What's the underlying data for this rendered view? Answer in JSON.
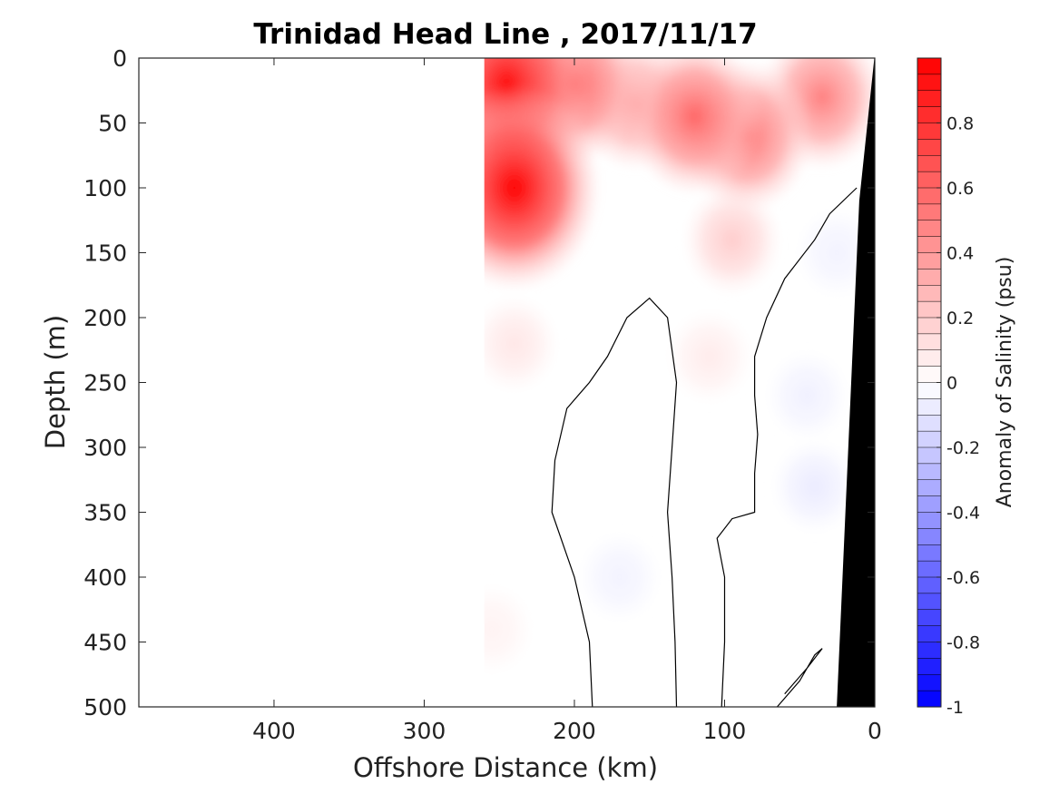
{
  "chart_data": {
    "type": "heatmap",
    "title": "Trinidad Head Line , 2017/11/17",
    "xlabel": "Offshore Distance (km)",
    "ylabel": "Depth (m)",
    "xlim": [
      490,
      0
    ],
    "ylim": [
      0,
      500
    ],
    "x_reversed": true,
    "y_reversed": true,
    "x_ticks": [
      "400",
      "300",
      "200",
      "100",
      "0"
    ],
    "y_ticks": [
      "0",
      "50",
      "100",
      "150",
      "200",
      "250",
      "300",
      "350",
      "400",
      "450",
      "500"
    ],
    "colorbar": {
      "label": "Anomaly of Salinity (psu)",
      "range": [
        -1,
        1
      ],
      "ticks": [
        "0.8",
        "0.6",
        "0.4",
        "0.2",
        "0",
        "-0.2",
        "-0.4",
        "-0.6",
        "-0.8",
        "-1"
      ],
      "low_color": "#0000ff",
      "mid_color": "#ffffff",
      "high_color": "#ff0000",
      "levels": 40
    },
    "grid": false,
    "data_extent_km": [
      0,
      260
    ],
    "anomaly_blobs": [
      {
        "distance_km": 240,
        "depth_m": 100,
        "value": 1.0
      },
      {
        "distance_km": 245,
        "depth_m": 20,
        "value": 0.95
      },
      {
        "distance_km": 200,
        "depth_m": 20,
        "value": 0.6
      },
      {
        "distance_km": 120,
        "depth_m": 45,
        "value": 0.6
      },
      {
        "distance_km": 85,
        "depth_m": 60,
        "value": 0.55
      },
      {
        "distance_km": 35,
        "depth_m": 30,
        "value": 0.5
      },
      {
        "distance_km": 160,
        "depth_m": 35,
        "value": 0.4
      },
      {
        "distance_km": 95,
        "depth_m": 140,
        "value": 0.2
      },
      {
        "distance_km": 240,
        "depth_m": 220,
        "value": 0.1
      },
      {
        "distance_km": 110,
        "depth_m": 230,
        "value": 0.08
      },
      {
        "distance_km": 255,
        "depth_m": 440,
        "value": 0.05
      },
      {
        "distance_km": 170,
        "depth_m": 400,
        "value": -0.05
      },
      {
        "distance_km": 40,
        "depth_m": 330,
        "value": -0.08
      },
      {
        "distance_km": 45,
        "depth_m": 260,
        "value": -0.06
      },
      {
        "distance_km": 25,
        "depth_m": 150,
        "value": -0.05
      }
    ],
    "zero_contours": [
      [
        [
          188,
          500
        ],
        [
          190,
          450
        ],
        [
          200,
          400
        ],
        [
          215,
          350
        ],
        [
          213,
          310
        ],
        [
          205,
          270
        ],
        [
          190,
          250
        ],
        [
          178,
          230
        ],
        [
          165,
          200
        ],
        [
          150,
          185
        ],
        [
          138,
          200
        ],
        [
          132,
          250
        ],
        [
          135,
          300
        ],
        [
          138,
          350
        ],
        [
          135,
          400
        ],
        [
          133,
          450
        ],
        [
          132,
          500
        ]
      ],
      [
        [
          102,
          500
        ],
        [
          100,
          450
        ],
        [
          100,
          400
        ],
        [
          105,
          370
        ],
        [
          95,
          355
        ],
        [
          80,
          350
        ],
        [
          80,
          320
        ],
        [
          78,
          290
        ],
        [
          80,
          260
        ],
        [
          80,
          230
        ],
        [
          72,
          200
        ],
        [
          60,
          170
        ],
        [
          40,
          140
        ],
        [
          30,
          120
        ],
        [
          12,
          100
        ]
      ],
      [
        [
          65,
          500
        ],
        [
          50,
          480
        ],
        [
          40,
          460
        ],
        [
          35,
          455
        ],
        [
          45,
          470
        ],
        [
          60,
          490
        ]
      ]
    ],
    "bathymetry_polygon": [
      [
        0,
        0
      ],
      [
        0,
        500
      ],
      [
        25,
        500
      ],
      [
        10,
        110
      ],
      [
        0,
        0
      ]
    ]
  }
}
